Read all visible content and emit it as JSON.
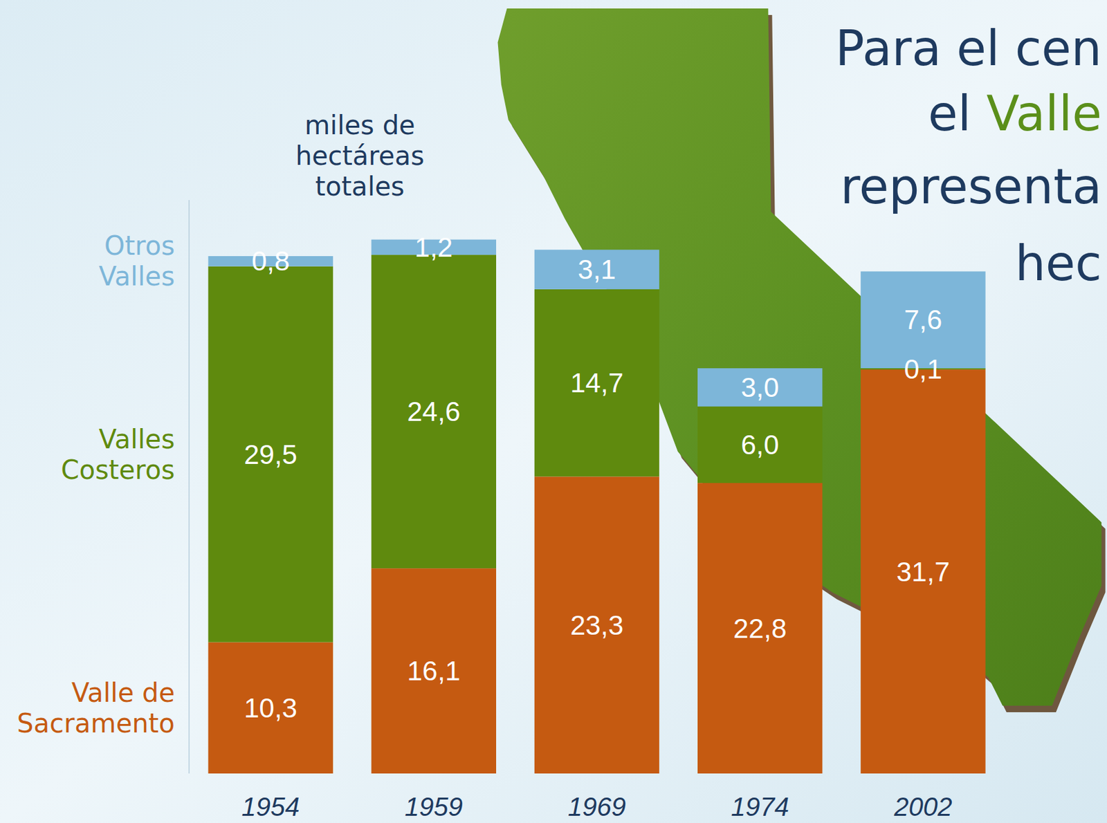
{
  "chart_data": {
    "type": "bar",
    "stacked": true,
    "data_labels": true,
    "tick_labels": "x",
    "legend": "left",
    "title": [
      "Para el cen",
      "el Valle",
      "representa",
      "hec"
    ],
    "y_label": "miles de hectáreas totales",
    "categories": [
      "1954",
      "1959",
      "1969",
      "1974",
      "2002"
    ],
    "ylim": [
      0,
      45
    ],
    "series": [
      {
        "name": "Valle de Sacramento",
        "color": "#c55a11",
        "values": [
          10.3,
          16.1,
          23.3,
          22.8,
          31.7
        ],
        "value_labels": [
          "10,3",
          "16,1",
          "23,3",
          "22,8",
          "31,7"
        ]
      },
      {
        "name": "Valles Costeros",
        "color": "#5f8a0e",
        "values": [
          29.5,
          24.6,
          14.7,
          6.0,
          0.1
        ],
        "value_labels": [
          "29,5",
          "24,6",
          "14,7",
          "6,0",
          "0,1"
        ]
      },
      {
        "name": "Otros Valles",
        "color": "#7db6d9",
        "values": [
          0.8,
          1.2,
          3.1,
          3.0,
          7.6
        ],
        "value_labels": [
          "0,8",
          "1,2",
          "3,1",
          "3,0",
          "7,6"
        ]
      }
    ]
  }
}
